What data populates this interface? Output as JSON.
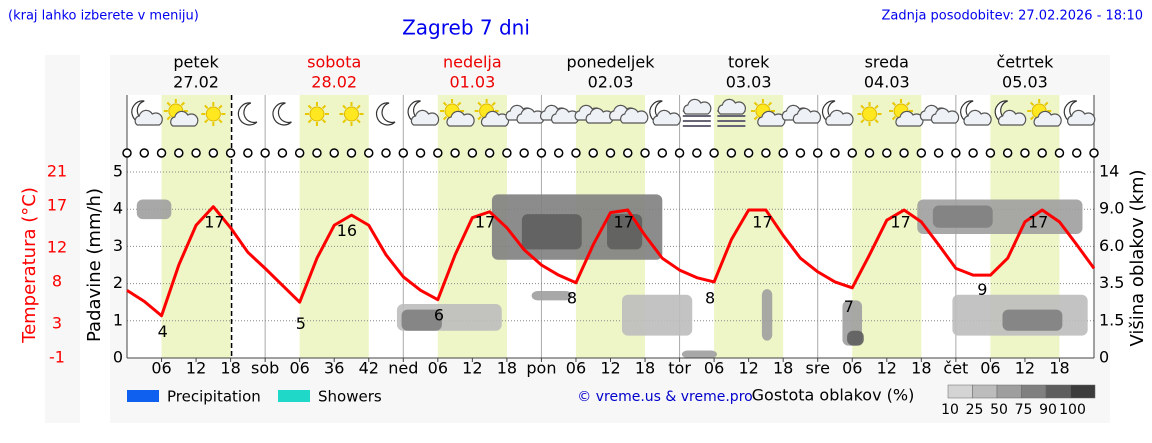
{
  "chart_data": {
    "type": "line",
    "note": "(kraj lahko izberete v meniju)",
    "title": "Zagreb 7 dni",
    "updated": "Zadnja posodobitev: 27.02.2026 - 18:10",
    "credit": "© vreme.us & vreme.pro",
    "days": [
      {
        "name": "petek",
        "date": "27.02",
        "color": "#000000"
      },
      {
        "name": "sobota",
        "date": "28.02",
        "color": "#ee0000"
      },
      {
        "name": "nedelja",
        "date": "01.03",
        "color": "#ee0000"
      },
      {
        "name": "ponedeljek",
        "date": "02.03",
        "color": "#000000"
      },
      {
        "name": "torek",
        "date": "03.03",
        "color": "#000000"
      },
      {
        "name": "sreda",
        "date": "04.03",
        "color": "#000000"
      },
      {
        "name": "četrtek",
        "date": "05.03",
        "color": "#000000"
      }
    ],
    "daylight": [
      [
        6,
        18
      ],
      [
        30,
        42
      ],
      [
        54,
        66
      ],
      [
        78,
        90
      ],
      [
        102,
        114
      ],
      [
        126,
        138
      ],
      [
        150,
        162
      ]
    ],
    "now": 18.17,
    "xlim": [
      0,
      168
    ],
    "xticks": [
      {
        "value": 6,
        "label": "06"
      },
      12,
      18,
      {
        "value": 24,
        "label": "sob"
      },
      {
        "value": 30,
        "label": "06"
      },
      36,
      42,
      {
        "value": 48,
        "label": "ned"
      },
      {
        "value": 54,
        "label": "06"
      },
      {
        "value": 60,
        "label": "12"
      },
      {
        "value": 66,
        "label": "18"
      },
      {
        "value": 72,
        "label": "pon"
      },
      {
        "value": 78,
        "label": "06"
      },
      {
        "value": 84,
        "label": "12"
      },
      {
        "value": 90,
        "label": "18"
      },
      {
        "value": 96,
        "label": "tor"
      },
      {
        "value": 102,
        "label": "06"
      },
      {
        "value": 108,
        "label": "12"
      },
      {
        "value": 114,
        "label": "18"
      },
      {
        "value": 120,
        "label": "sre"
      },
      {
        "value": 126,
        "label": "06"
      },
      {
        "value": 132,
        "label": "12"
      },
      {
        "value": 138,
        "label": "18"
      },
      {
        "value": 144,
        "label": "čet"
      },
      {
        "value": 150,
        "label": "06"
      },
      {
        "value": 156,
        "label": "12"
      },
      {
        "value": 162,
        "label": "18"
      }
    ],
    "ylabel": "Temperatura (°C)",
    "ylim": [
      -1,
      21
    ],
    "yticks": [
      21,
      17,
      12,
      8,
      3,
      -1
    ],
    "color": "#ff0000",
    "x": [
      0,
      3,
      6,
      9,
      12,
      15,
      18,
      21,
      24,
      27,
      30,
      33,
      36,
      39,
      42,
      45,
      48,
      51,
      54,
      57,
      60,
      63,
      66,
      69,
      72,
      75,
      78,
      81,
      84,
      87,
      90,
      93,
      96,
      99,
      102,
      105,
      108,
      111,
      114,
      117,
      120,
      123,
      126,
      129,
      132,
      135,
      138,
      141,
      144,
      147,
      150,
      153,
      156,
      159,
      162,
      165,
      168
    ],
    "values": [
      7,
      5.7,
      4,
      10,
      14.7,
      16.9,
      14.4,
      11.5,
      9.6,
      7.6,
      5.6,
      10.8,
      14.7,
      15.9,
      14.7,
      11.2,
      8.6,
      7,
      5.9,
      11.2,
      15.6,
      16.3,
      14.4,
      11.8,
      10,
      8.8,
      7.9,
      12.4,
      16.2,
      16.5,
      13.5,
      10.8,
      9.4,
      8.5,
      8,
      13,
      16.5,
      16.5,
      13.5,
      10.8,
      9.2,
      8,
      7.3,
      11.2,
      15.3,
      16.5,
      15.1,
      12.4,
      9.6,
      8.8,
      8.8,
      10.8,
      15.1,
      16.5,
      15.1,
      12.4,
      9.6
    ],
    "temp_labels": {
      "x": [
        6.2,
        15.2,
        30.2,
        38.2,
        54.2,
        62.2,
        77.3,
        86.3,
        101.3,
        110.4,
        125.4,
        134.4,
        148.6,
        158.3
      ],
      "values": [
        4,
        17,
        5,
        16,
        6,
        17,
        8,
        17,
        8,
        17,
        7,
        17,
        9,
        17
      ]
    },
    "y2label": "Padavine (mm/h)",
    "y2lim": [
      0,
      5
    ],
    "y2ticks": [
      0,
      1,
      2,
      3,
      4,
      5
    ],
    "y3label": "Višina oblakov (km)",
    "y3lim": [
      0,
      14
    ],
    "y3ticks": [
      0,
      1.5,
      3.5,
      {
        "value": 6,
        "label": "6.0"
      },
      {
        "value": 9,
        "label": "9.0"
      },
      14
    ],
    "grid": true,
    "clouds": [
      {
        "x": [
          1.7,
          7.7
        ],
        "y": [
          8.2,
          10.3
        ],
        "density": 50
      },
      {
        "x": [
          63.4,
          93
        ],
        "y": [
          5.1,
          11
        ],
        "density": 75
      },
      {
        "x": [
          68.6,
          79
        ],
        "y": [
          5.8,
          8.6
        ],
        "density": 90
      },
      {
        "x": [
          83.4,
          89.5
        ],
        "y": [
          5.8,
          8.6
        ],
        "density": 90
      },
      {
        "x": [
          137.3,
          166
        ],
        "y": [
          7,
          10.3
        ],
        "density": 50
      },
      {
        "x": [
          140,
          150.4
        ],
        "y": [
          7.5,
          9.5
        ],
        "density": 75
      },
      {
        "x": [
          46.9,
          65.1
        ],
        "y": [
          1.1,
          2.4
        ],
        "density": 25
      },
      {
        "x": [
          47.7,
          54.7
        ],
        "y": [
          1.1,
          2.1
        ],
        "density": 75
      },
      {
        "x": [
          70.3,
          77.3
        ],
        "y": [
          2.6,
          3.1
        ],
        "density": 50
      },
      {
        "x": [
          86,
          98.2
        ],
        "y": [
          0.9,
          2.9
        ],
        "density": 25
      },
      {
        "x": [
          96.4,
          102.5
        ],
        "y": [
          0,
          0.3
        ],
        "density": 50
      },
      {
        "x": [
          110.3,
          112.1
        ],
        "y": [
          0.7,
          3.2
        ],
        "density": 50
      },
      {
        "x": [
          124.3,
          127.7
        ],
        "y": [
          0.5,
          2.6
        ],
        "density": 50
      },
      {
        "x": [
          125.1,
          128
        ],
        "y": [
          0.5,
          1.1
        ],
        "density": 90
      },
      {
        "x": [
          143.4,
          166.9
        ],
        "y": [
          0.9,
          2.9
        ],
        "density": 25
      },
      {
        "x": [
          152.1,
          162.5
        ],
        "y": [
          1.1,
          2.1
        ],
        "density": 75
      }
    ],
    "cloud_legend": {
      "title": "Gostota oblakov (%)",
      "levels": [
        10,
        25,
        50,
        75,
        90,
        100
      ],
      "colors": [
        "#d4d4d4",
        "#bcbcbc",
        "#9e9e9e",
        "#808080",
        "#5e5e5e",
        "#3c3c3c"
      ]
    },
    "legend": [
      {
        "name": "Precipitation",
        "color": "#1060f0"
      },
      {
        "name": "Showers",
        "color": "#20d8c8"
      }
    ]
  }
}
